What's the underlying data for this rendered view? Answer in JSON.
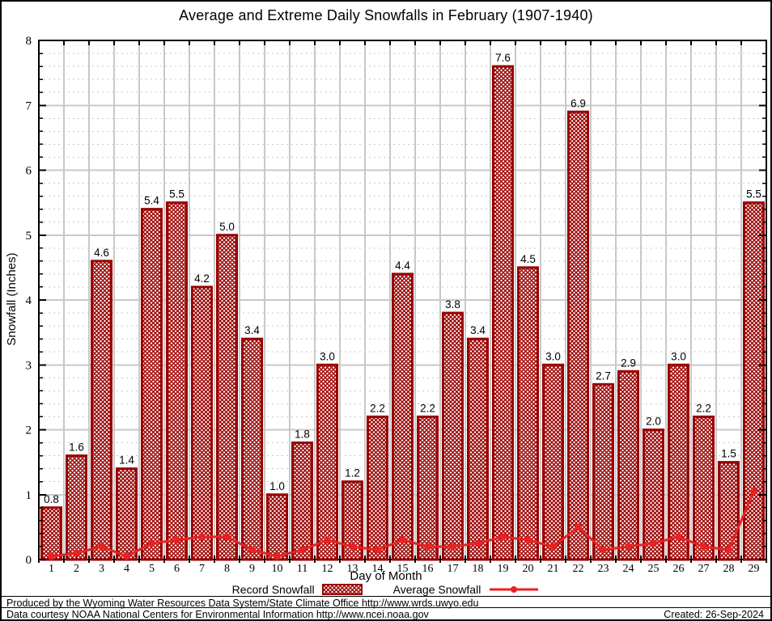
{
  "title": "Average and Extreme Daily Snowfalls in February (1907-1940)",
  "axes": {
    "ylabel": "Snowfall (Inches)",
    "xlabel": "Day of Month"
  },
  "legend": {
    "record": "Record Snowfall",
    "average": "Average Snowfall"
  },
  "footer": {
    "line1": "Produced by the Wyoming Water Resources Data System/State Climate Office http://www.wrds.uwyo.edu",
    "line2": "Data courtesy NOAA National Centers for Environmental Information http://www.ncei.noaa.gov",
    "created": "Created: 26-Sep-2024"
  },
  "chart_data": {
    "type": "bar",
    "title": "Average and Extreme Daily Snowfalls in February (1907-1940)",
    "xlabel": "Day of Month",
    "ylabel": "Snowfall (Inches)",
    "ylim": [
      0,
      8
    ],
    "y_major_step": 1,
    "y_minor_step": 0.2,
    "grid": "major-solid, minor-dashed-horizontal, vertical-per-day",
    "legend_position": "bottom",
    "categories": [
      1,
      2,
      3,
      4,
      5,
      6,
      7,
      8,
      9,
      10,
      11,
      12,
      13,
      14,
      15,
      16,
      17,
      18,
      19,
      20,
      21,
      22,
      23,
      24,
      25,
      26,
      27,
      28,
      29
    ],
    "series": [
      {
        "name": "Record Snowfall",
        "type": "bar",
        "hatch": true,
        "values": [
          0.8,
          1.6,
          4.6,
          1.4,
          5.4,
          5.5,
          4.2,
          5.0,
          3.4,
          1.0,
          1.8,
          3.0,
          1.2,
          2.2,
          4.4,
          2.2,
          3.8,
          3.4,
          7.6,
          4.5,
          3.0,
          6.9,
          2.7,
          2.9,
          2.0,
          3.0,
          2.2,
          1.5,
          5.5
        ]
      },
      {
        "name": "Average Snowfall",
        "type": "line",
        "values": [
          0.05,
          0.1,
          0.2,
          0.05,
          0.25,
          0.3,
          0.35,
          0.35,
          0.15,
          0.05,
          0.15,
          0.3,
          0.2,
          0.15,
          0.3,
          0.2,
          0.2,
          0.25,
          0.35,
          0.3,
          0.2,
          0.5,
          0.15,
          0.2,
          0.25,
          0.35,
          0.2,
          0.15,
          1.05
        ]
      }
    ],
    "colors": {
      "bar_edge": "#990000",
      "bar_hatch": "#9a0000",
      "line": "#e82222",
      "grid": "#c8c8c8",
      "frame": "#000000",
      "text": "#000000"
    }
  }
}
